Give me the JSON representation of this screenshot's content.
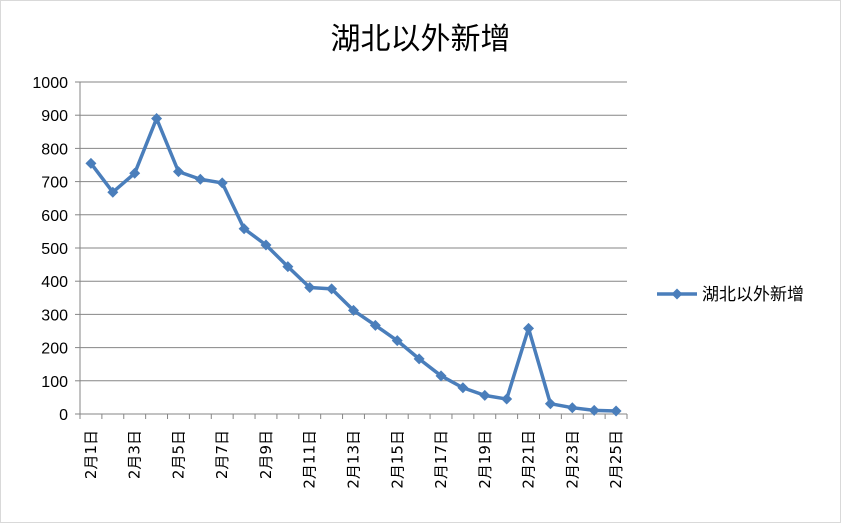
{
  "chart_data": {
    "type": "line",
    "title": "湖北以外新增",
    "xlabel": "",
    "ylabel": "",
    "ylim": [
      0,
      1000
    ],
    "yticks": [
      0,
      100,
      200,
      300,
      400,
      500,
      600,
      700,
      800,
      900,
      1000
    ],
    "grid": true,
    "legend_position": "right",
    "categories": [
      "2月1日",
      "2月2日",
      "2月3日",
      "2月4日",
      "2月5日",
      "2月6日",
      "2月7日",
      "2月8日",
      "2月9日",
      "2月10日",
      "2月11日",
      "2月12日",
      "2月13日",
      "2月14日",
      "2月15日",
      "2月16日",
      "2月17日",
      "2月18日",
      "2月19日",
      "2月20日",
      "2月21日",
      "2月22日",
      "2月23日",
      "2月24日",
      "2月25日"
    ],
    "x_tick_labels": [
      "2月1日",
      "2月3日",
      "2月5日",
      "2月7日",
      "2月9日",
      "2月11日",
      "2月13日",
      "2月15日",
      "2月17日",
      "2月19日",
      "2月21日",
      "2月23日",
      "2月25日"
    ],
    "series": [
      {
        "name": "湖北以外新增",
        "color": "#4a7ebb",
        "marker": "diamond",
        "values": [
          755,
          668,
          725,
          890,
          730,
          707,
          696,
          558,
          509,
          444,
          381,
          377,
          312,
          267,
          221,
          166,
          115,
          79,
          56,
          45,
          258,
          31,
          19,
          11,
          9
        ]
      }
    ]
  }
}
